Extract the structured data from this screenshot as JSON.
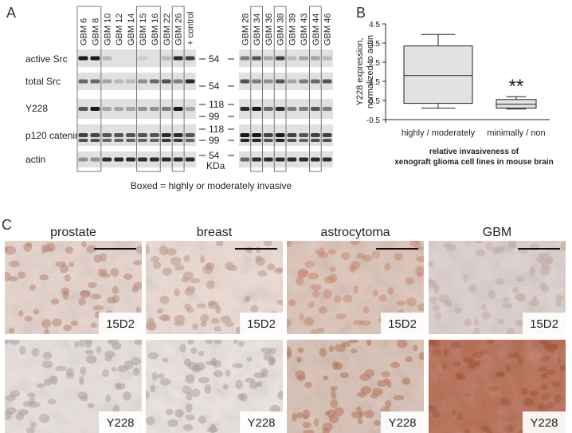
{
  "panels": {
    "a": "A",
    "b": "B",
    "c": "C"
  },
  "western_blot": {
    "lanes_left": [
      "GBM 6",
      "GBM 8",
      "GBM 10",
      "GBM 12",
      "GBM 14",
      "GBM 15",
      "GBM 16",
      "GBM 22",
      "GBM 26",
      "+ control"
    ],
    "lanes_right": [
      "GBM 28",
      "GBM 34",
      "GBM 36",
      "GBM 38",
      "GBM 39",
      "GBM 43",
      "GBM 44",
      "GBM 46"
    ],
    "rows": [
      "active Src",
      "total Src",
      "Y228",
      "p120 catenin",
      "actin"
    ],
    "markers": [
      "54",
      "54",
      "118",
      "99",
      "118",
      "99",
      "54"
    ],
    "unit": "KDa",
    "caption": "Boxed = highly or moderately invasive"
  },
  "chart_data": {
    "type": "box",
    "categories": [
      "highly / moderately",
      "minimally / non"
    ],
    "series": [
      {
        "whisker_low": 0.1,
        "q1": 0.35,
        "median": 1.8,
        "q3": 3.35,
        "whisker_high": 3.95
      },
      {
        "whisker_low": 0.05,
        "q1": 0.1,
        "median": 0.3,
        "q3": 0.55,
        "whisker_high": 0.7
      }
    ],
    "ylabel": "Y228 expression,\nnormalized to actin",
    "yticks": [
      "4.5",
      "3.5",
      "2.5",
      "1.5",
      "0.5",
      "-0.5"
    ],
    "ylim": [
      -0.5,
      4.5
    ],
    "xlabel": "relative invasiveness of\nxenograft glioma cell lines in mouse brain",
    "annotation": "**",
    "grid": false
  },
  "histology": {
    "columns": [
      "prostate",
      "breast",
      "astrocytoma",
      "GBM"
    ],
    "stains": [
      "15D2",
      "Y228"
    ]
  }
}
